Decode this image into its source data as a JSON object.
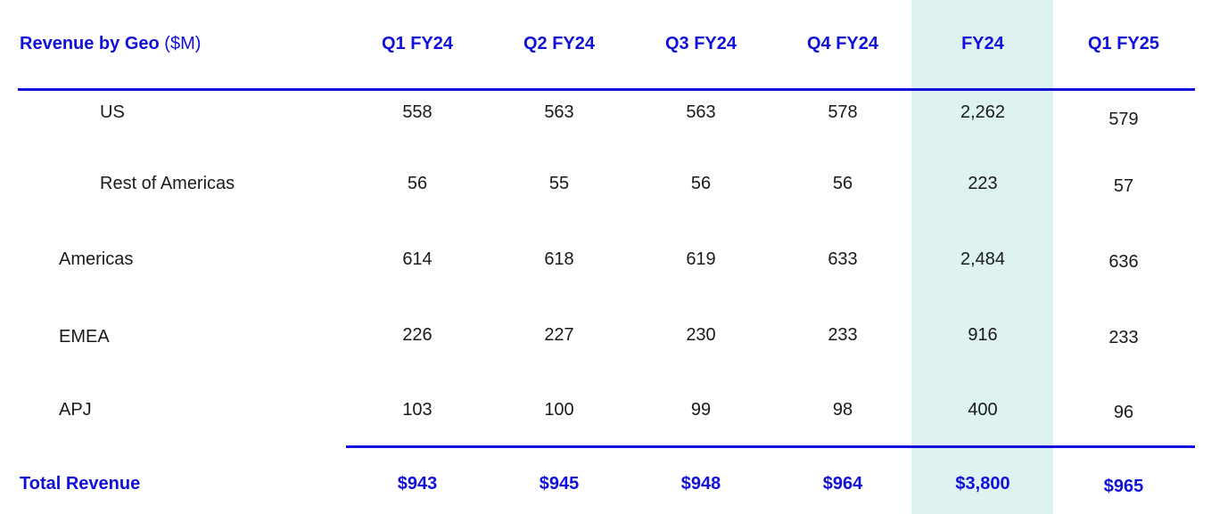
{
  "chart_data": {
    "type": "table",
    "title": "Revenue by Geo",
    "unit": "($M)",
    "columns": [
      "Q1 FY24",
      "Q2 FY24",
      "Q3 FY24",
      "Q4 FY24",
      "FY24",
      "Q1 FY25"
    ],
    "highlight_column": "FY24",
    "highlight_color": "#dff2f2",
    "accent_color": "#1010d8",
    "rows": [
      {
        "label": "US",
        "values": [
          "558",
          "563",
          "563",
          "578",
          "2,262",
          "579"
        ]
      },
      {
        "label": "Rest of Americas",
        "values": [
          "56",
          "55",
          "56",
          "56",
          "223",
          "57"
        ]
      },
      {
        "label": "Americas",
        "values": [
          "614",
          "618",
          "619",
          "633",
          "2,484",
          "636"
        ]
      },
      {
        "label": "EMEA",
        "values": [
          "226",
          "227",
          "230",
          "233",
          "916",
          "233"
        ]
      },
      {
        "label": "APJ",
        "values": [
          "103",
          "100",
          "99",
          "98",
          "400",
          "96"
        ]
      }
    ],
    "total": {
      "label": "Total Revenue",
      "values": [
        "$943",
        "$945",
        "$948",
        "$964",
        "$3,800",
        "$965"
      ]
    }
  }
}
